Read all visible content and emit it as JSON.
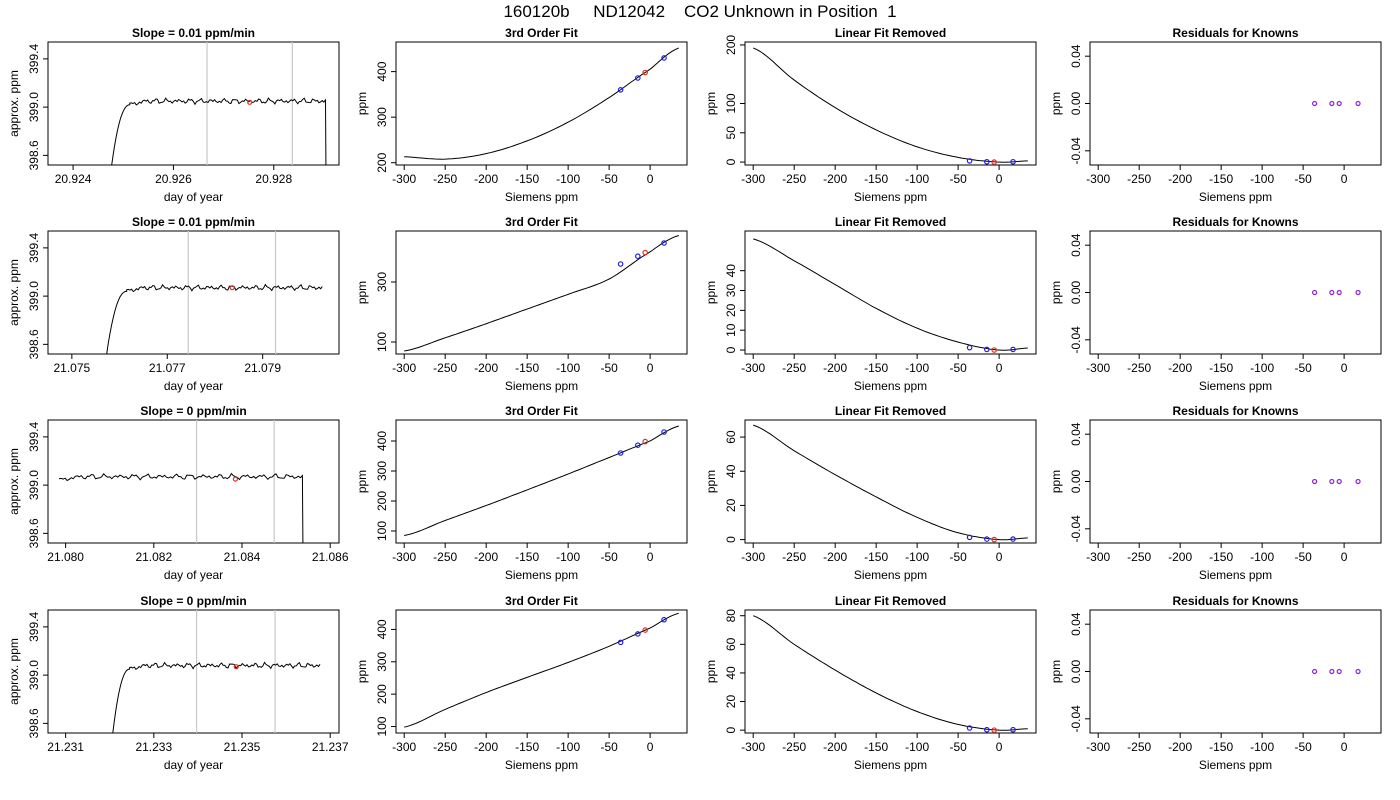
{
  "title": "160120b     ND12042    CO2 Unknown in Position  1",
  "chart_data": [
    {
      "type": "line",
      "title": "Slope =  0.01  ppm/min",
      "xlabel": "day of year",
      "ylabel": "approx. ppm",
      "xlim": [
        20.9235,
        20.9293
      ],
      "ylim": [
        398.52,
        399.54
      ],
      "xticks": [
        "20.924",
        "20.926",
        "20.928"
      ],
      "yticks": [
        "398.6",
        "399.0",
        "399.4"
      ],
      "vlines": [
        20.92667,
        20.92837
      ],
      "marker": {
        "x": 20.92752,
        "y": 399.04
      },
      "trace": {
        "start_x": 20.92477,
        "start_y": 398.52,
        "rise_end": 20.92513,
        "plateau": 399.05,
        "end_x": 20.92903,
        "drop": true
      }
    },
    {
      "type": "line",
      "title": "3rd Order Fit",
      "xlabel": "Siemens ppm",
      "ylabel": "ppm",
      "xlim": [
        -310,
        45
      ],
      "ylim": [
        195,
        465
      ],
      "xticks": [
        "-300",
        "-250",
        "-200",
        "-150",
        "-100",
        "-50",
        "0"
      ],
      "yticks": [
        "200",
        "300",
        "400"
      ],
      "curve_x": [
        -300,
        -250,
        -200,
        -150,
        -100,
        -50,
        0,
        35
      ],
      "curve_y": [
        213,
        208,
        220,
        248,
        289,
        343,
        405,
        452
      ],
      "knowns": [
        {
          "x": -36,
          "y": 360
        },
        {
          "x": -15,
          "y": 386
        },
        {
          "x": 17,
          "y": 430
        }
      ],
      "unknown": {
        "x": -6,
        "y": 398
      }
    },
    {
      "type": "line",
      "title": "Linear Fit Removed",
      "xlabel": "Siemens ppm",
      "ylabel": "ppm",
      "xlim": [
        -310,
        45
      ],
      "ylim": [
        -5,
        205
      ],
      "xticks": [
        "-300",
        "-250",
        "-200",
        "-150",
        "-100",
        "-50",
        "0"
      ],
      "yticks": [
        "0",
        "50",
        "100",
        "200"
      ],
      "curve_x": [
        -300,
        -250,
        -200,
        -150,
        -100,
        -50,
        0,
        35
      ],
      "curve_y": [
        195,
        140,
        93,
        55,
        26,
        8,
        0,
        2
      ],
      "knowns": [
        {
          "x": -36,
          "y": 2
        },
        {
          "x": -15,
          "y": 0.5
        },
        {
          "x": 17,
          "y": 0.5
        }
      ],
      "unknown": {
        "x": -6,
        "y": 0
      }
    },
    {
      "type": "scatter",
      "title": "Residuals for Knowns",
      "xlabel": "Siemens ppm",
      "ylabel": "ppm",
      "xlim": [
        -310,
        45
      ],
      "ylim": [
        -0.052,
        0.052
      ],
      "xticks": [
        "-300",
        "-250",
        "-200",
        "-150",
        "-100",
        "-50",
        "0"
      ],
      "yticks": [
        "-0.04",
        "0.00",
        "0.04"
      ],
      "points": [
        {
          "x": -36,
          "y": 0
        },
        {
          "x": -15,
          "y": 0
        },
        {
          "x": -6,
          "y": 0
        },
        {
          "x": 17,
          "y": 0
        }
      ]
    },
    {
      "type": "line",
      "title": "Slope =  0.01  ppm/min",
      "xlabel": "day of year",
      "ylabel": "approx. ppm",
      "xlim": [
        21.0745,
        21.0806
      ],
      "ylim": [
        398.52,
        399.54
      ],
      "xticks": [
        "21.075",
        "21.077",
        "21.079"
      ],
      "yticks": [
        "398.6",
        "399.0",
        "399.4"
      ],
      "vlines": [
        21.07744,
        21.07927
      ],
      "marker": {
        "x": 21.07836,
        "y": 399.07
      },
      "trace": {
        "start_x": 21.07573,
        "start_y": 398.52,
        "rise_end": 21.07615,
        "plateau": 399.07,
        "end_x": 21.08025,
        "drop": false
      }
    },
    {
      "type": "line",
      "title": "3rd Order Fit",
      "xlabel": "Siemens ppm",
      "ylabel": "ppm",
      "xlim": [
        -310,
        45
      ],
      "ylim": [
        60,
        470
      ],
      "xticks": [
        "-300",
        "-250",
        "-200",
        "-150",
        "-100",
        "-50",
        "0"
      ],
      "yticks": [
        "100",
        "300"
      ],
      "curve_x": [
        -300,
        -250,
        -200,
        -150,
        -100,
        -50,
        0,
        35
      ],
      "curve_y": [
        70,
        114,
        161,
        210,
        259,
        310,
        400,
        455
      ],
      "knowns": [
        {
          "x": -36,
          "y": 360
        },
        {
          "x": -15,
          "y": 386
        },
        {
          "x": 17,
          "y": 430
        }
      ],
      "unknown": {
        "x": -6,
        "y": 398
      }
    },
    {
      "type": "line",
      "title": "Linear Fit Removed",
      "xlabel": "Siemens ppm",
      "ylabel": "ppm",
      "xlim": [
        -310,
        45
      ],
      "ylim": [
        -2,
        60
      ],
      "xticks": [
        "-300",
        "-250",
        "-200",
        "-150",
        "-100",
        "-50",
        "0"
      ],
      "yticks": [
        "0",
        "10",
        "20",
        "30",
        "40"
      ],
      "curve_x": [
        -300,
        -250,
        -200,
        -150,
        -100,
        -50,
        0,
        35
      ],
      "curve_y": [
        56,
        45,
        33,
        21,
        11,
        4,
        0,
        1
      ],
      "knowns": [
        {
          "x": -36,
          "y": 1.2
        },
        {
          "x": -15,
          "y": 0.3
        },
        {
          "x": 17,
          "y": 0.3
        }
      ],
      "unknown": {
        "x": -6,
        "y": 0
      }
    },
    {
      "type": "scatter",
      "title": "Residuals for Knowns",
      "xlabel": "Siemens ppm",
      "ylabel": "ppm",
      "xlim": [
        -310,
        45
      ],
      "ylim": [
        -0.052,
        0.052
      ],
      "xticks": [
        "-300",
        "-250",
        "-200",
        "-150",
        "-100",
        "-50",
        "0"
      ],
      "yticks": [
        "-0.04",
        "0.00",
        "0.04"
      ],
      "points": [
        {
          "x": -36,
          "y": 0
        },
        {
          "x": -15,
          "y": 0
        },
        {
          "x": -6,
          "y": 0
        },
        {
          "x": 17,
          "y": 0
        }
      ]
    },
    {
      "type": "line",
      "title": "Slope =  0  ppm/min",
      "xlabel": "day of year",
      "ylabel": "approx. ppm",
      "xlim": [
        21.0796,
        21.0862
      ],
      "ylim": [
        398.52,
        399.54
      ],
      "xticks": [
        "21.080",
        "21.082",
        "21.084",
        "21.086"
      ],
      "yticks": [
        "398.6",
        "399.0",
        "399.4"
      ],
      "vlines": [
        21.08297,
        21.08473
      ],
      "marker": {
        "x": 21.08385,
        "y": 399.05
      },
      "trace": {
        "start_x": 21.07985,
        "start_y": 399.05,
        "rise_end": 21.07985,
        "plateau": 399.07,
        "end_x": 21.08537,
        "drop": true
      }
    },
    {
      "type": "line",
      "title": "3rd Order Fit",
      "xlabel": "Siemens ppm",
      "ylabel": "ppm",
      "xlim": [
        -310,
        45
      ],
      "ylim": [
        60,
        470
      ],
      "xticks": [
        "-300",
        "-250",
        "-200",
        "-150",
        "-100",
        "-50",
        "0"
      ],
      "yticks": [
        "100",
        "200",
        "300",
        "400"
      ],
      "curve_x": [
        -300,
        -250,
        -200,
        -150,
        -100,
        -50,
        0,
        35
      ],
      "curve_y": [
        85,
        135,
        185,
        237,
        290,
        345,
        400,
        450
      ],
      "knowns": [
        {
          "x": -36,
          "y": 360
        },
        {
          "x": -15,
          "y": 386
        },
        {
          "x": 17,
          "y": 430
        }
      ],
      "unknown": {
        "x": -6,
        "y": 398
      }
    },
    {
      "type": "line",
      "title": "Linear Fit Removed",
      "xlabel": "Siemens ppm",
      "ylabel": "ppm",
      "xlim": [
        -310,
        45
      ],
      "ylim": [
        -2,
        70
      ],
      "xticks": [
        "-300",
        "-250",
        "-200",
        "-150",
        "-100",
        "-50",
        "0"
      ],
      "yticks": [
        "0",
        "20",
        "40",
        "60"
      ],
      "curve_x": [
        -300,
        -250,
        -200,
        -150,
        -100,
        -50,
        0,
        35
      ],
      "curve_y": [
        67,
        52,
        38,
        25,
        13,
        4,
        0,
        1
      ],
      "knowns": [
        {
          "x": -36,
          "y": 1.3
        },
        {
          "x": -15,
          "y": 0.3
        },
        {
          "x": 17,
          "y": 0.3
        }
      ],
      "unknown": {
        "x": -6,
        "y": 0
      }
    },
    {
      "type": "scatter",
      "title": "Residuals for Knowns",
      "xlabel": "Siemens ppm",
      "ylabel": "ppm",
      "xlim": [
        -310,
        45
      ],
      "ylim": [
        -0.052,
        0.052
      ],
      "xticks": [
        "-300",
        "-250",
        "-200",
        "-150",
        "-100",
        "-50",
        "0"
      ],
      "yticks": [
        "-0.04",
        "0.00",
        "0.04"
      ],
      "points": [
        {
          "x": -36,
          "y": 0
        },
        {
          "x": -15,
          "y": 0
        },
        {
          "x": -6,
          "y": 0
        },
        {
          "x": 17,
          "y": 0
        }
      ]
    },
    {
      "type": "line",
      "title": "Slope =  0  ppm/min",
      "xlabel": "day of year",
      "ylabel": "approx. ppm",
      "xlim": [
        21.2306,
        21.2372
      ],
      "ylim": [
        398.52,
        399.54
      ],
      "xticks": [
        "21.231",
        "21.233",
        "21.235",
        "21.237"
      ],
      "yticks": [
        "398.6",
        "399.0",
        "399.4"
      ],
      "vlines": [
        21.23397,
        21.23575
      ],
      "marker": {
        "x": 21.23487,
        "y": 399.07
      },
      "trace": {
        "start_x": 21.23207,
        "start_y": 398.52,
        "rise_end": 21.23245,
        "plateau": 399.08,
        "end_x": 21.23677,
        "drop": false
      }
    },
    {
      "type": "line",
      "title": "3rd Order Fit",
      "xlabel": "Siemens ppm",
      "ylabel": "ppm",
      "xlim": [
        -310,
        45
      ],
      "ylim": [
        80,
        460
      ],
      "xticks": [
        "-300",
        "-250",
        "-200",
        "-150",
        "-100",
        "-50",
        "0"
      ],
      "yticks": [
        "100",
        "200",
        "300",
        "400"
      ],
      "curve_x": [
        -300,
        -250,
        -200,
        -150,
        -100,
        -50,
        0,
        35
      ],
      "curve_y": [
        98,
        153,
        205,
        252,
        298,
        348,
        404,
        450
      ],
      "knowns": [
        {
          "x": -36,
          "y": 360
        },
        {
          "x": -15,
          "y": 386
        },
        {
          "x": 17,
          "y": 430
        }
      ],
      "unknown": {
        "x": -6,
        "y": 398
      }
    },
    {
      "type": "line",
      "title": "Linear Fit Removed",
      "xlabel": "Siemens ppm",
      "ylabel": "ppm",
      "xlim": [
        -310,
        45
      ],
      "ylim": [
        -2,
        84
      ],
      "xticks": [
        "-300",
        "-250",
        "-200",
        "-150",
        "-100",
        "-50",
        "0"
      ],
      "yticks": [
        "0",
        "20",
        "40",
        "60",
        "80"
      ],
      "curve_x": [
        -300,
        -250,
        -200,
        -150,
        -100,
        -50,
        0,
        35
      ],
      "curve_y": [
        80,
        60,
        42,
        26,
        13,
        4,
        0,
        1
      ],
      "knowns": [
        {
          "x": -36,
          "y": 1.5
        },
        {
          "x": -15,
          "y": 0.3
        },
        {
          "x": 17,
          "y": 0.3
        }
      ],
      "unknown": {
        "x": -6,
        "y": 0
      }
    },
    {
      "type": "scatter",
      "title": "Residuals for Knowns",
      "xlabel": "Siemens ppm",
      "ylabel": "ppm",
      "xlim": [
        -310,
        45
      ],
      "ylim": [
        -0.052,
        0.052
      ],
      "xticks": [
        "-300",
        "-250",
        "-200",
        "-150",
        "-100",
        "-50",
        "0"
      ],
      "yticks": [
        "-0.04",
        "0.00",
        "0.04"
      ],
      "points": [
        {
          "x": -36,
          "y": 0
        },
        {
          "x": -15,
          "y": 0
        },
        {
          "x": -6,
          "y": 0
        },
        {
          "x": 17,
          "y": 0
        }
      ]
    }
  ]
}
